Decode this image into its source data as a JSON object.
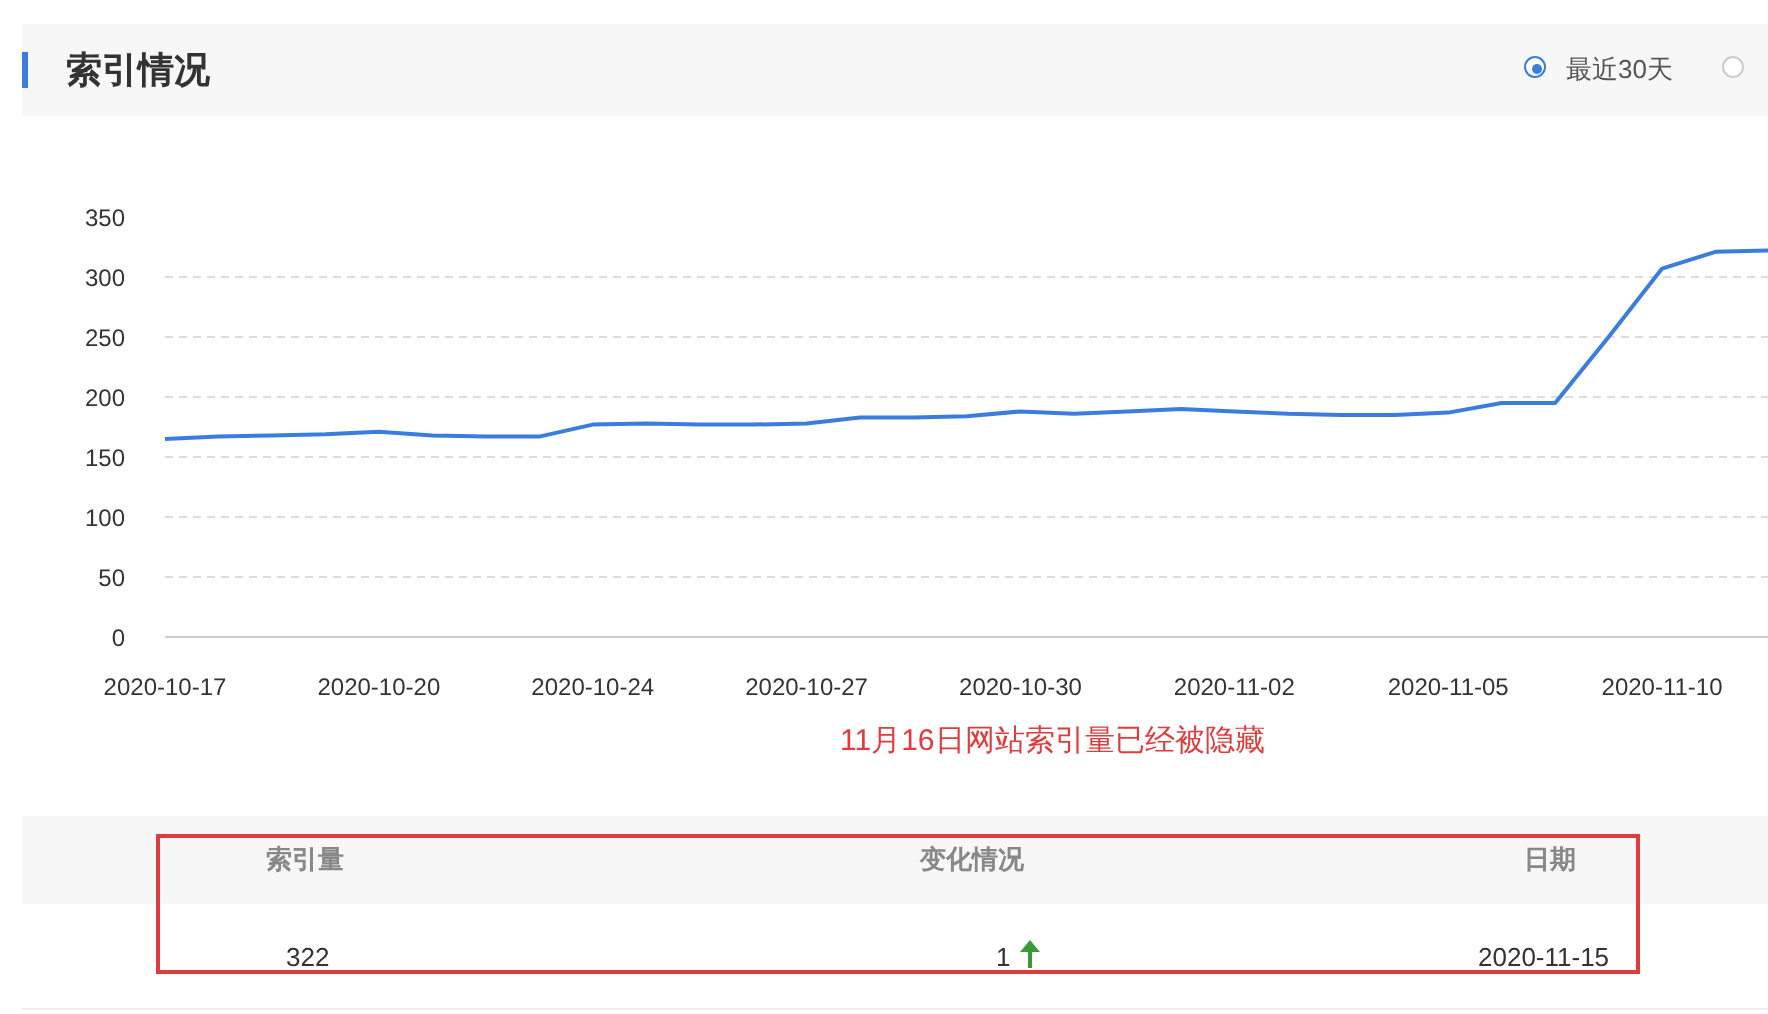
{
  "chart_data": {
    "type": "line",
    "title": "索引情况",
    "categories": [
      "2020-10-17",
      null,
      null,
      null,
      "2020-10-20",
      null,
      null,
      null,
      "2020-10-24",
      null,
      null,
      null,
      "2020-10-27",
      null,
      null,
      null,
      "2020-10-30",
      null,
      null,
      null,
      "2020-11-02",
      null,
      null,
      null,
      "2020-11-05",
      null,
      null,
      null,
      "2020-11-10",
      null,
      null
    ],
    "series": [
      {
        "color": "#3b7ddd",
        "values": [
          165,
          167,
          168,
          169,
          171,
          168,
          167,
          167,
          177,
          178,
          177,
          177,
          178,
          183,
          183,
          184,
          188,
          186,
          188,
          190,
          188,
          186,
          185,
          185,
          187,
          195,
          195,
          250,
          307,
          321,
          322
        ]
      }
    ],
    "ylim": [
      0,
      350
    ],
    "yticks": [
      0,
      50,
      100,
      150,
      200,
      250,
      300,
      350
    ],
    "grid": "y",
    "marker": "none",
    "line_style": "solid",
    "annotations": [
      "最近30天",
      "11月16日网站索引量已经被隐藏",
      "索引量",
      "变化情况",
      "日期",
      "322",
      "1",
      "2020-11-15"
    ]
  }
}
